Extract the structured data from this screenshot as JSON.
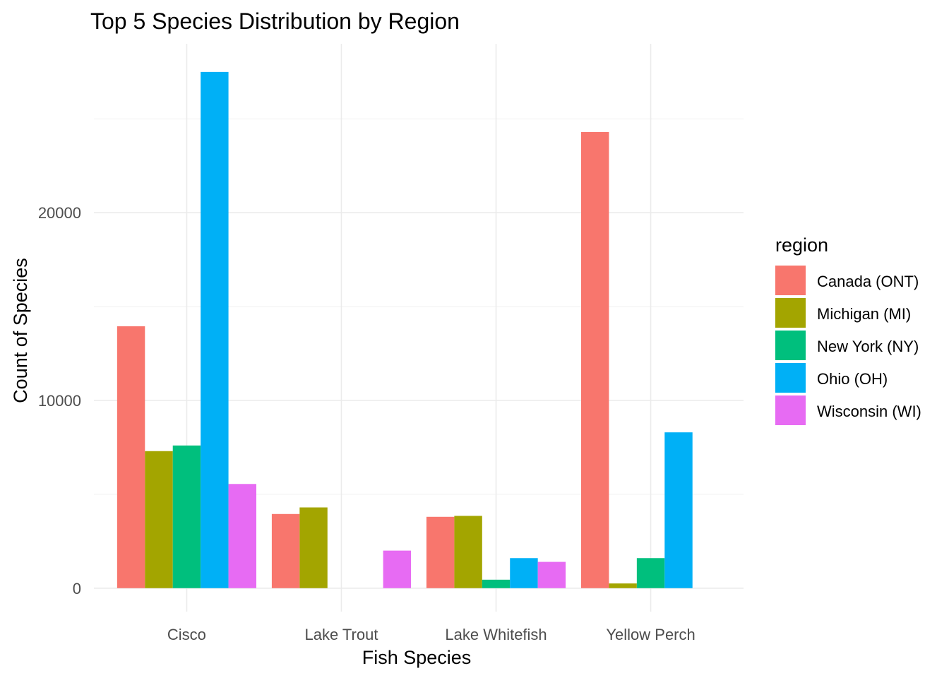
{
  "chart_data": {
    "type": "bar",
    "title": "Top 5 Species Distribution by Region",
    "xlabel": "Fish Species",
    "ylabel": "Count of Species",
    "categories": [
      "Cisco",
      "Lake Trout",
      "Lake Whitefish",
      "Yellow Perch"
    ],
    "series": [
      {
        "name": "Canada (ONT)",
        "color": "#F8766D",
        "values": [
          13950,
          3950,
          3800,
          24300
        ]
      },
      {
        "name": "Michigan (MI)",
        "color": "#A3A500",
        "values": [
          7300,
          4300,
          3850,
          250
        ]
      },
      {
        "name": "New York (NY)",
        "color": "#00BF7D",
        "values": [
          7600,
          null,
          450,
          1600
        ]
      },
      {
        "name": "Ohio (OH)",
        "color": "#00B0F6",
        "values": [
          27500,
          null,
          1600,
          8300
        ]
      },
      {
        "name": "Wisconsin (WI)",
        "color": "#E76BF3",
        "values": [
          5550,
          2000,
          1400,
          null
        ]
      }
    ],
    "yticks": [
      0,
      10000,
      20000
    ],
    "ytick_labels": [
      "0",
      "10000",
      "20000"
    ],
    "ylim": [
      -1250,
      29000
    ],
    "grid": true,
    "legend": {
      "title": "region",
      "position": "right"
    }
  }
}
